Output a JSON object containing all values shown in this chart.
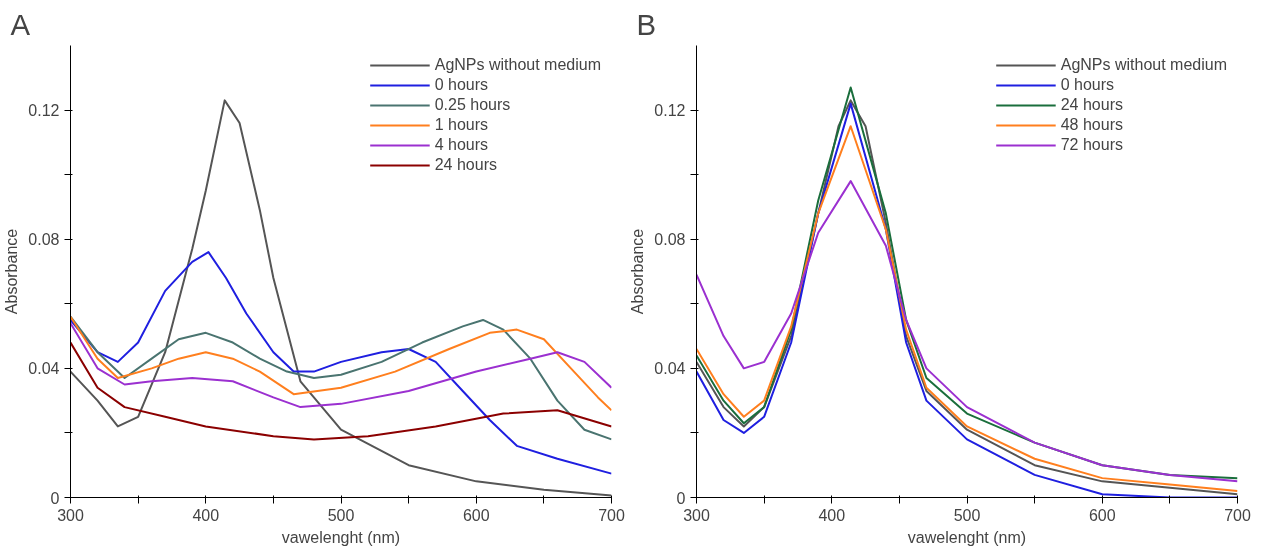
{
  "chart_data": [
    {
      "type": "line",
      "title": "A",
      "xlabel": "vawelenght (nm)",
      "ylabel": "Absorbance",
      "xlim": [
        300,
        700
      ],
      "ylim": [
        0,
        0.14
      ],
      "xticks": [
        300,
        {
          "value": 350,
          "label": null
        },
        400,
        {
          "value": 450,
          "label": null
        },
        500,
        {
          "value": 550,
          "label": null
        },
        600,
        {
          "value": 650,
          "label": null
        },
        700
      ],
      "yticks": [
        0,
        {
          "value": 0.02,
          "label": null
        },
        0.04,
        {
          "value": 0.06,
          "label": null
        },
        0.08,
        {
          "value": 0.1,
          "label": null
        },
        0.12
      ],
      "grid": false,
      "legend": "top right",
      "marker": "none",
      "line_style": "solid",
      "series": [
        {
          "name": "AgNPs without medium",
          "color": "#555555",
          "x": [
            300,
            320,
            335,
            350,
            370,
            390,
            400,
            414,
            425,
            440,
            450,
            470,
            500,
            550,
            600,
            650,
            700
          ],
          "values": [
            0.039,
            0.03,
            0.022,
            0.025,
            0.045,
            0.077,
            0.095,
            0.123,
            0.116,
            0.089,
            0.068,
            0.036,
            0.021,
            0.01,
            0.005,
            0.0024,
            0.0006
          ]
        },
        {
          "name": "0 hours",
          "color": "#1f1fe0",
          "x": [
            300,
            320,
            335,
            350,
            370,
            390,
            402,
            415,
            430,
            450,
            465,
            480,
            500,
            530,
            550,
            570,
            590,
            610,
            630,
            660,
            700
          ],
          "values": [
            0.055,
            0.045,
            0.042,
            0.048,
            0.064,
            0.073,
            0.076,
            0.068,
            0.057,
            0.045,
            0.039,
            0.039,
            0.042,
            0.045,
            0.046,
            0.042,
            0.033,
            0.024,
            0.016,
            0.012,
            0.0074
          ]
        },
        {
          "name": "0.25 hours",
          "color": "#4a7470",
          "x": [
            300,
            320,
            340,
            360,
            380,
            400,
            420,
            440,
            460,
            480,
            500,
            530,
            560,
            590,
            605,
            620,
            640,
            660,
            680,
            700
          ],
          "values": [
            0.056,
            0.045,
            0.037,
            0.043,
            0.049,
            0.051,
            0.048,
            0.043,
            0.039,
            0.037,
            0.038,
            0.042,
            0.048,
            0.053,
            0.055,
            0.052,
            0.043,
            0.03,
            0.021,
            0.018
          ]
        },
        {
          "name": "1 hours",
          "color": "#ff7f1e",
          "x": [
            300,
            320,
            335,
            360,
            380,
            400,
            420,
            440,
            465,
            500,
            540,
            580,
            610,
            630,
            650,
            670,
            690,
            700
          ],
          "values": [
            0.056,
            0.043,
            0.037,
            0.04,
            0.043,
            0.045,
            0.043,
            0.039,
            0.032,
            0.034,
            0.039,
            0.046,
            0.051,
            0.052,
            0.049,
            0.04,
            0.031,
            0.027
          ]
        },
        {
          "name": "4 hours",
          "color": "#9b30d0",
          "x": [
            300,
            320,
            340,
            360,
            390,
            420,
            450,
            470,
            500,
            550,
            600,
            640,
            660,
            680,
            700
          ],
          "values": [
            0.054,
            0.04,
            0.035,
            0.036,
            0.037,
            0.036,
            0.031,
            0.028,
            0.029,
            0.033,
            0.039,
            0.043,
            0.045,
            0.042,
            0.034
          ]
        },
        {
          "name": "24 hours",
          "color": "#8b0000",
          "x": [
            300,
            320,
            340,
            370,
            400,
            450,
            480,
            520,
            570,
            620,
            660,
            700
          ],
          "values": [
            0.048,
            0.034,
            0.028,
            0.025,
            0.022,
            0.019,
            0.018,
            0.019,
            0.022,
            0.026,
            0.027,
            0.022
          ]
        }
      ]
    },
    {
      "type": "line",
      "title": "B",
      "xlabel": "vawelenght (nm)",
      "ylabel": "Absorbance",
      "xlim": [
        300,
        700
      ],
      "ylim": [
        0,
        0.14
      ],
      "xticks": [
        300,
        {
          "value": 350,
          "label": null
        },
        400,
        {
          "value": 450,
          "label": null
        },
        500,
        {
          "value": 550,
          "label": null
        },
        600,
        {
          "value": 650,
          "label": null
        },
        700
      ],
      "yticks": [
        0,
        {
          "value": 0.02,
          "label": null
        },
        0.04,
        {
          "value": 0.06,
          "label": null
        },
        0.08,
        {
          "value": 0.1,
          "label": null
        },
        0.12
      ],
      "grid": false,
      "legend": "top right",
      "marker": "none",
      "line_style": "solid",
      "series": [
        {
          "name": "AgNPs without medium",
          "color": "#555555",
          "x": [
            300,
            320,
            335,
            350,
            370,
            390,
            405,
            414,
            425,
            440,
            455,
            470,
            500,
            550,
            600,
            650,
            700
          ],
          "values": [
            0.042,
            0.028,
            0.022,
            0.028,
            0.05,
            0.088,
            0.115,
            0.123,
            0.115,
            0.085,
            0.05,
            0.033,
            0.021,
            0.01,
            0.005,
            0.003,
            0.001
          ]
        },
        {
          "name": "0 hours",
          "color": "#1f1fe0",
          "x": [
            300,
            320,
            335,
            350,
            370,
            390,
            414,
            440,
            455,
            470,
            500,
            550,
            600,
            650,
            700
          ],
          "values": [
            0.039,
            0.024,
            0.02,
            0.025,
            0.048,
            0.088,
            0.122,
            0.083,
            0.048,
            0.03,
            0.018,
            0.007,
            0.001,
            0.0,
            0.0
          ]
        },
        {
          "name": "24 hours",
          "color": "#1a6e3c",
          "x": [
            300,
            320,
            335,
            350,
            370,
            390,
            414,
            440,
            455,
            470,
            500,
            550,
            600,
            650,
            700
          ],
          "values": [
            0.044,
            0.03,
            0.023,
            0.028,
            0.052,
            0.092,
            0.127,
            0.088,
            0.055,
            0.037,
            0.026,
            0.017,
            0.01,
            0.007,
            0.006
          ]
        },
        {
          "name": "48 hours",
          "color": "#ff7f1e",
          "x": [
            300,
            320,
            335,
            350,
            370,
            390,
            414,
            440,
            455,
            470,
            500,
            550,
            600,
            650,
            700
          ],
          "values": [
            0.046,
            0.032,
            0.025,
            0.03,
            0.053,
            0.088,
            0.115,
            0.083,
            0.052,
            0.034,
            0.022,
            0.012,
            0.006,
            0.004,
            0.002
          ]
        },
        {
          "name": "72 hours",
          "color": "#9b30d0",
          "x": [
            300,
            320,
            335,
            350,
            370,
            390,
            414,
            440,
            455,
            470,
            500,
            550,
            600,
            650,
            700
          ],
          "values": [
            0.069,
            0.05,
            0.04,
            0.042,
            0.057,
            0.082,
            0.098,
            0.078,
            0.055,
            0.04,
            0.028,
            0.017,
            0.01,
            0.007,
            0.005
          ]
        }
      ]
    }
  ]
}
